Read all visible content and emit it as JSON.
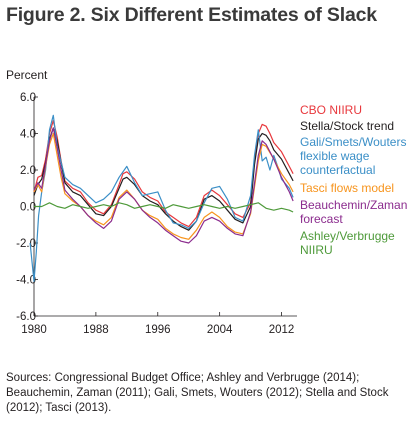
{
  "title": "Figure 2. Six Different Estimates of Slack",
  "source": "Sources: Congressional Budget Office; Ashley and Verbrugge (2014); Beauchemin, Zaman (2011); Gali, Smets, Wouters (2012); Stella and Stock (2012); Tasci (2013).",
  "chart_data": {
    "type": "line",
    "title": "Figure 2. Six Different Estimates of Slack",
    "ylabel": "Percent",
    "xlabel": "",
    "xlim": [
      1980,
      2014
    ],
    "ylim": [
      -6,
      6
    ],
    "xticks": [
      1980,
      1988,
      1996,
      2004,
      2012
    ],
    "yticks": [
      6,
      4,
      2,
      0,
      -2,
      -4,
      -6
    ],
    "ytick_labels": [
      "6.0",
      "4.0",
      "2.0",
      "0.0",
      "-2.0",
      "-4.0",
      "-6.0"
    ],
    "legend_placement": "right",
    "series": [
      {
        "name": "CBO NIIRU",
        "legend_lines": [
          "CBO NIIRU"
        ],
        "color": "#e8383d",
        "x": [
          1980,
          1980.5,
          1981,
          1981.5,
          1982,
          1982.5,
          1983,
          1983.5,
          1984,
          1985,
          1986,
          1987,
          1988,
          1989,
          1990,
          1991,
          1991.5,
          1992,
          1993,
          1994,
          1995,
          1996,
          1997,
          1998,
          1999,
          2000,
          2001,
          2002,
          2003,
          2004,
          2005,
          2006,
          2007,
          2008,
          2008.5,
          2009,
          2009.5,
          2010,
          2010.5,
          2011,
          2012,
          2013,
          2013.5
        ],
        "y": [
          0.8,
          1.6,
          1.7,
          2.6,
          4.0,
          4.7,
          3.8,
          2.5,
          1.4,
          1.0,
          0.8,
          0.2,
          -0.2,
          -0.4,
          0.1,
          1.2,
          1.8,
          1.9,
          1.5,
          0.8,
          0.5,
          0.3,
          -0.3,
          -0.6,
          -0.9,
          -1.1,
          -0.6,
          0.6,
          0.9,
          0.6,
          0.1,
          -0.4,
          -0.6,
          0.2,
          2.5,
          4.0,
          4.5,
          4.4,
          4.0,
          3.5,
          3.0,
          2.2,
          1.8
        ]
      },
      {
        "name": "Stella/Stock trend",
        "legend_lines": [
          "Stella/Stock trend"
        ],
        "color": "#231f20",
        "x": [
          1980,
          1980.5,
          1981,
          1981.5,
          1982,
          1982.5,
          1983,
          1983.5,
          1984,
          1985,
          1986,
          1987,
          1988,
          1989,
          1990,
          1991,
          1991.5,
          1992,
          1993,
          1994,
          1995,
          1996,
          1997,
          1998,
          1999,
          2000,
          2001,
          2002,
          2003,
          2004,
          2005,
          2006,
          2007,
          2008,
          2008.5,
          2009,
          2009.5,
          2010,
          2010.5,
          2011,
          2012,
          2013,
          2013.5
        ],
        "y": [
          0.6,
          1.2,
          1.5,
          2.4,
          3.7,
          4.3,
          3.6,
          2.4,
          1.3,
          0.8,
          0.6,
          0.1,
          -0.4,
          -0.5,
          0.0,
          1.0,
          1.5,
          1.6,
          1.2,
          0.6,
          0.3,
          0.1,
          -0.4,
          -0.8,
          -1.1,
          -1.3,
          -0.8,
          0.4,
          0.6,
          0.3,
          -0.2,
          -0.7,
          -0.9,
          0.0,
          2.3,
          3.7,
          4.0,
          3.9,
          3.6,
          3.1,
          2.6,
          1.8,
          1.4
        ]
      },
      {
        "name": "Gali/Smets/Wouters flexible wage counterfactual",
        "legend_lines": [
          "Gali/Smets/Wouters",
          "flexible wage",
          "counterfactual"
        ],
        "color": "#3b8fc7",
        "x": [
          1979.5,
          1980,
          1980.3,
          1980.6,
          1981,
          1981.5,
          1982,
          1982.5,
          1983,
          1984,
          1985,
          1986,
          1987,
          1988,
          1989,
          1990,
          1991,
          1992,
          1993,
          1994,
          1995,
          1996,
          1997,
          1998,
          1999,
          2000,
          2001,
          2002,
          2003,
          2004,
          2005,
          2006,
          2007,
          2008,
          2008.5,
          2009,
          2009.5,
          2010,
          2010.5,
          2011,
          2011.5,
          2012,
          2013,
          2013.5
        ],
        "y": [
          -2.0,
          -4.1,
          -2.5,
          -0.5,
          0.8,
          2.0,
          4.2,
          5.0,
          3.3,
          1.6,
          1.2,
          1.0,
          0.6,
          0.2,
          0.4,
          0.8,
          1.6,
          2.2,
          1.3,
          0.6,
          0.7,
          0.8,
          -0.2,
          -0.9,
          -1.0,
          -1.2,
          -0.8,
          0.2,
          1.0,
          1.1,
          0.4,
          -0.6,
          -0.8,
          0.6,
          2.8,
          4.2,
          2.5,
          2.7,
          2.0,
          2.8,
          2.2,
          1.5,
          1.0,
          0.5
        ]
      },
      {
        "name": "Tasci flows model",
        "legend_lines": [
          "Tasci flows model"
        ],
        "color": "#f7941d",
        "x": [
          1980,
          1980.5,
          1981,
          1981.5,
          1982,
          1982.5,
          1983,
          1983.5,
          1984,
          1985,
          1986,
          1987,
          1988,
          1989,
          1990,
          1991,
          1992,
          1993,
          1994,
          1995,
          1996,
          1997,
          1998,
          1999,
          2000,
          2001,
          2002,
          2003,
          2004,
          2005,
          2006,
          2007,
          2008,
          2009,
          2009.5,
          2010,
          2011,
          2012,
          2013,
          2013.5
        ],
        "y": [
          0.8,
          1.2,
          0.8,
          2.2,
          3.4,
          4.0,
          2.8,
          1.6,
          0.7,
          0.3,
          0.0,
          -0.5,
          -0.8,
          -1.0,
          -0.6,
          0.5,
          0.9,
          0.4,
          -0.2,
          -0.5,
          -0.7,
          -1.2,
          -1.5,
          -1.7,
          -1.8,
          -1.3,
          -0.6,
          -0.3,
          -0.6,
          -1.1,
          -1.4,
          -1.5,
          -0.4,
          2.5,
          3.4,
          3.3,
          2.6,
          1.8,
          1.2,
          0.8
        ]
      },
      {
        "name": "Beauchemin/Zaman forecast",
        "legend_lines": [
          "Beauchemin/Zaman",
          "forecast"
        ],
        "color": "#8b2c8e",
        "x": [
          1980,
          1980.5,
          1981,
          1981.5,
          1982,
          1982.5,
          1983,
          1983.5,
          1984,
          1985,
          1986,
          1987,
          1988,
          1989,
          1990,
          1991,
          1992,
          1993,
          1994,
          1995,
          1996,
          1997,
          1998,
          1999,
          2000,
          2001,
          2002,
          2003,
          2004,
          2005,
          2006,
          2007,
          2008,
          2009,
          2009.5,
          2010,
          2011,
          2012,
          2013,
          2013.5
        ],
        "y": [
          0.9,
          1.3,
          1.0,
          2.3,
          3.6,
          4.3,
          3.2,
          2.0,
          0.9,
          0.4,
          0.0,
          -0.5,
          -0.9,
          -1.2,
          -0.8,
          0.4,
          0.8,
          0.4,
          -0.2,
          -0.6,
          -0.9,
          -1.3,
          -1.6,
          -1.9,
          -2.0,
          -1.6,
          -0.8,
          -0.6,
          -0.8,
          -1.2,
          -1.5,
          -1.6,
          -0.3,
          2.8,
          3.6,
          3.4,
          2.6,
          1.6,
          0.8,
          0.3
        ]
      },
      {
        "name": "Ashley/Verbrugge NIIRU",
        "legend_lines": [
          "Ashley/Verbrugge",
          "NIIRU"
        ],
        "color": "#4e9a3a",
        "x": [
          1980,
          1981,
          1982,
          1983,
          1984,
          1985,
          1986,
          1987,
          1988,
          1989,
          1990,
          1991,
          1992,
          1993,
          1994,
          1995,
          1996,
          1997,
          1998,
          1999,
          2000,
          2001,
          2002,
          2003,
          2004,
          2005,
          2006,
          2007,
          2008,
          2009,
          2010,
          2011,
          2012,
          2013,
          2013.5
        ],
        "y": [
          0.0,
          0.0,
          0.2,
          0.0,
          -0.1,
          0.1,
          0.0,
          -0.1,
          0.0,
          0.1,
          0.0,
          0.2,
          0.1,
          -0.1,
          0.0,
          0.1,
          0.0,
          -0.1,
          0.1,
          0.0,
          -0.1,
          0.0,
          0.1,
          0.0,
          -0.1,
          0.0,
          -0.1,
          0.0,
          0.1,
          0.2,
          -0.1,
          -0.2,
          -0.1,
          -0.2,
          -0.3
        ]
      }
    ]
  }
}
